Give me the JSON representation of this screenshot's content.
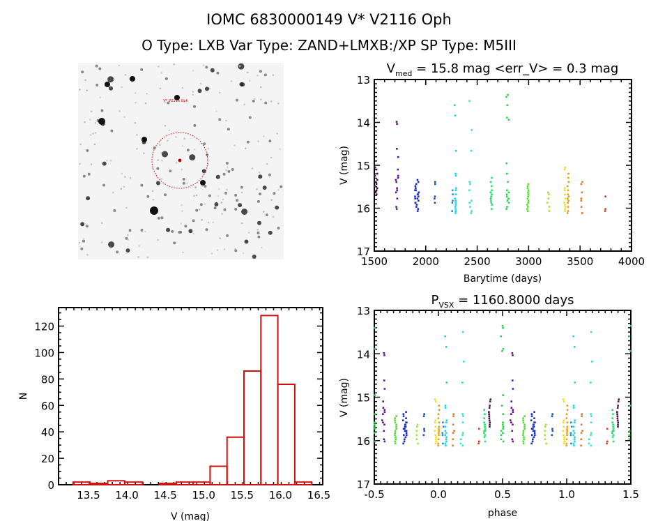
{
  "header": {
    "title": "IOMC 6830000149    V* V2116 Oph",
    "subtitle": "O Type: LXB  Var Type: ZAND+LMXB:/XP  SP Type: M5III"
  },
  "image_panel": {
    "target_label": "V* V2116 Oph",
    "marker_color": "#cc0000",
    "background": "#f4f4f4"
  },
  "chart_data": [
    {
      "type": "scatter",
      "title_main": "V",
      "title_sub": "med",
      "title_rest": " = 15.8 mag <err_V> = 0.3 mag",
      "xlabel": "Barytime (days)",
      "ylabel": "V (mag)",
      "xlim": [
        1500,
        4000
      ],
      "ylim": [
        17,
        13
      ],
      "xticks": [
        "1500",
        "2000",
        "2500",
        "3000",
        "3500",
        "4000"
      ],
      "yticks": [
        "13",
        "14",
        "15",
        "16",
        "17"
      ],
      "clusters": [
        {
          "t": 1518,
          "span": 25,
          "color": "#4a1748",
          "mags": [
            15.05,
            15.1,
            15.2,
            15.25,
            15.35,
            15.4,
            15.45,
            15.5,
            15.55,
            15.6,
            15.65,
            15.7
          ]
        },
        {
          "t": 1720,
          "span": 25,
          "color": "#5a1a85",
          "mags": [
            13.95,
            14.0,
            14.6,
            14.8,
            15.1,
            15.25,
            15.3,
            15.35,
            15.4,
            15.55,
            15.6,
            15.65,
            15.8,
            16.0,
            16.05
          ]
        },
        {
          "t": 1914,
          "span": 40,
          "color": "#1a2ec0",
          "mags": [
            15.35,
            15.4,
            15.45,
            15.5,
            15.55,
            15.6,
            15.6,
            15.65,
            15.7,
            15.7,
            15.75,
            15.8,
            15.8,
            15.85,
            15.9,
            15.95,
            16.0,
            16.05,
            16.1,
            15.65,
            15.75,
            15.9
          ]
        },
        {
          "t": 2088,
          "span": 8,
          "color": "#1f4fb0",
          "mags": [
            15.4,
            15.45,
            15.75,
            15.8,
            15.9
          ]
        },
        {
          "t": 2260,
          "span": 10,
          "color": "#2290d0",
          "mags": [
            15.6,
            15.7,
            15.85,
            15.9,
            16.1
          ]
        },
        {
          "t": 2287,
          "span": 15,
          "color": "#22d2e6",
          "mags": [
            13.55,
            13.8,
            14.65,
            15.2,
            15.25,
            15.55,
            15.6,
            15.7,
            15.8,
            15.85,
            15.9,
            15.95,
            16.0,
            16.05,
            16.1,
            16.15
          ]
        },
        {
          "t": 2434,
          "span": 30,
          "color": "#40e0c8",
          "mags": [
            13.45,
            14.15,
            14.65,
            15.4,
            15.45,
            15.6,
            15.85,
            15.9,
            16.0,
            16.1,
            16.15
          ]
        },
        {
          "t": 2637,
          "span": 15,
          "color": "#20e070",
          "mags": [
            15.3,
            15.4,
            15.5,
            15.6,
            15.65,
            15.7,
            15.75,
            15.8,
            15.8,
            15.85,
            15.9,
            15.95,
            16.05
          ]
        },
        {
          "t": 2795,
          "span": 25,
          "color": "#30d050",
          "mags": [
            13.3,
            13.35,
            13.55,
            13.85,
            13.9,
            14.95,
            15.2,
            15.4,
            15.6,
            15.65,
            15.7,
            15.75,
            15.8,
            15.85,
            15.9,
            16.0,
            16.05
          ]
        },
        {
          "t": 2992,
          "span": 15,
          "color": "#55e030",
          "mags": [
            15.45,
            15.5,
            15.55,
            15.6,
            15.65,
            15.7,
            15.75,
            15.8,
            15.85,
            15.9,
            15.95,
            16.0,
            16.05,
            16.1
          ]
        },
        {
          "t": 3191,
          "span": 20,
          "color": "#a8e040",
          "mags": [
            15.65,
            15.7,
            15.8,
            15.9,
            16.0,
            16.1
          ]
        },
        {
          "t": 3349,
          "span": 20,
          "color": "#f0e020",
          "mags": [
            15.05,
            15.1,
            15.55,
            15.6,
            15.7,
            15.8,
            15.9,
            15.95,
            16.0,
            16.05,
            16.1
          ]
        },
        {
          "t": 3383,
          "span": 12,
          "color": "#e0a020",
          "mags": [
            15.2,
            15.3,
            15.4,
            15.5,
            15.6,
            15.7,
            15.75,
            15.8,
            15.85,
            15.9,
            16.0,
            16.1,
            16.15
          ]
        },
        {
          "t": 3519,
          "span": 20,
          "color": "#d08030",
          "mags": [
            15.4,
            15.45,
            15.65,
            15.8,
            15.85,
            16.0,
            16.15
          ]
        },
        {
          "t": 3745,
          "span": 5,
          "color": "#d04020",
          "mags": [
            15.75,
            16.05,
            16.1
          ]
        }
      ]
    },
    {
      "type": "bar",
      "xlabel": "V (mag)",
      "ylabel": "N",
      "xlim": [
        13.11,
        16.55
      ],
      "ylim": [
        0,
        134
      ],
      "xticks": [
        "13.5",
        "14.0",
        "14.5",
        "15.0",
        "15.5",
        "16.0",
        "16.5"
      ],
      "yticks": [
        "0",
        "20",
        "40",
        "60",
        "80",
        "100",
        "120"
      ],
      "bar_color": "#cc1111",
      "bin_edges": [
        13.3,
        13.52,
        13.75,
        13.97,
        14.2,
        14.42,
        14.64,
        14.86,
        15.08,
        15.3,
        15.52,
        15.74,
        15.96,
        16.18,
        16.4
      ],
      "values": [
        2,
        1,
        3,
        2,
        0,
        1,
        2,
        2,
        14,
        36,
        86,
        128,
        76,
        2
      ]
    },
    {
      "type": "scatter",
      "title_main": "P",
      "title_sub": "VSX",
      "title_rest": " = 1160.8000 days",
      "period_days": 1160.8,
      "xlabel": "phase",
      "ylabel": "V (mag)",
      "xlim": [
        -0.5,
        1.5
      ],
      "ylim": [
        17,
        13
      ],
      "xticks": [
        "-0.5",
        "0.0",
        "0.5",
        "1.0",
        "1.5"
      ],
      "yticks": [
        "13",
        "14",
        "15",
        "16",
        "17"
      ]
    }
  ]
}
